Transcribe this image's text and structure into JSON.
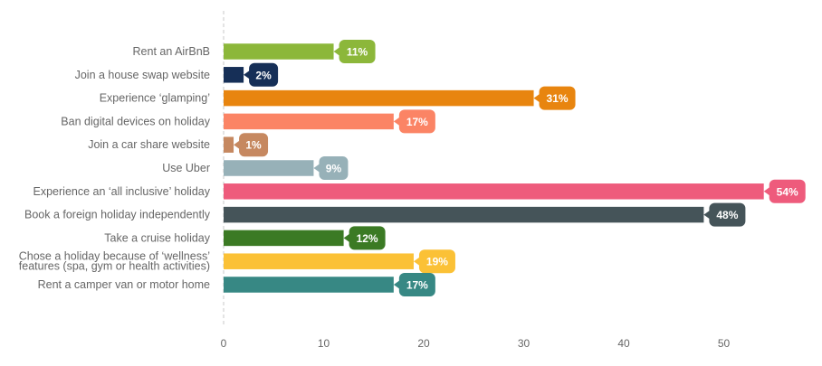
{
  "chart_data": {
    "type": "bar",
    "orientation": "horizontal",
    "title": "",
    "xlabel": "",
    "ylabel": "",
    "xlim": [
      0,
      55
    ],
    "x_ticks": [
      0,
      10,
      20,
      30,
      40,
      50
    ],
    "x_tick_labels": [
      "0",
      "10",
      "20",
      "30",
      "40",
      "50"
    ],
    "grid": false,
    "legend": "none",
    "value_suffix": "%",
    "categories": [
      [
        "Rent an AirBnB"
      ],
      [
        "Join a house swap website"
      ],
      [
        "Experience ‘glamping’"
      ],
      [
        "Ban digital devices on holiday"
      ],
      [
        "Join a car share website"
      ],
      [
        "Use Uber"
      ],
      [
        "Experience an ‘all inclusive’ holiday"
      ],
      [
        "Book a foreign holiday independently"
      ],
      [
        "Take a cruise holiday"
      ],
      [
        "Chose a holiday because of ‘wellness’",
        "features (spa, gym or health activities)"
      ],
      [
        "Rent a camper van or motor home"
      ]
    ],
    "values": [
      11,
      2,
      31,
      17,
      1,
      9,
      54,
      48,
      12,
      19,
      17
    ],
    "data_labels": [
      "11%",
      "2%",
      "31%",
      "17%",
      "1%",
      "9%",
      "54%",
      "48%",
      "12%",
      "19%",
      "17%"
    ],
    "colors": [
      "#8cb73a",
      "#162f57",
      "#e8850f",
      "#fb8465",
      "#c68860",
      "#97b1b8",
      "#ee5b7c",
      "#455459",
      "#3b7a24",
      "#fbc136",
      "#378884"
    ]
  }
}
